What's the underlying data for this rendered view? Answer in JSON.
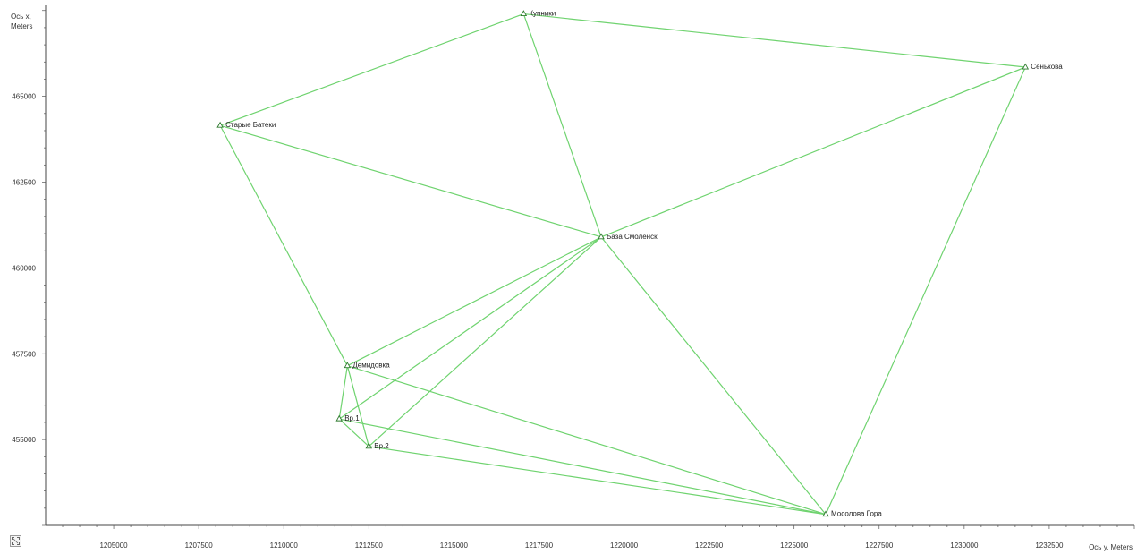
{
  "chart_data": {
    "type": "network",
    "axes": {
      "x_title": "Ось y, Meters",
      "y_title_line1": "Ось x,",
      "y_title_line2": "Meters",
      "x_range": [
        1203000,
        1235000
      ],
      "y_range": [
        452500,
        467650
      ],
      "x_ticks": [
        1205000,
        1207500,
        1210000,
        1212500,
        1215000,
        1217500,
        1220000,
        1222500,
        1225000,
        1227500,
        1230000,
        1232500
      ],
      "y_ticks": [
        455000,
        457500,
        460000,
        462500,
        465000
      ]
    },
    "points": [
      {
        "id": "kupniki",
        "label": "Купники",
        "e": 1217050,
        "n": 467400
      },
      {
        "id": "senkova",
        "label": "Сенькова",
        "e": 1231800,
        "n": 465850
      },
      {
        "id": "starye",
        "label": "Старые Батеки",
        "e": 1208130,
        "n": 464150
      },
      {
        "id": "baza",
        "label": "База Смоленск",
        "e": 1219330,
        "n": 460900
      },
      {
        "id": "demid",
        "label": "Демидовка",
        "e": 1211870,
        "n": 457150
      },
      {
        "id": "vr1",
        "label": "Вр.1",
        "e": 1211630,
        "n": 455600
      },
      {
        "id": "vr2",
        "label": "Вр.2",
        "e": 1212500,
        "n": 454800
      },
      {
        "id": "mosolova",
        "label": "Мосолова Гора",
        "e": 1225930,
        "n": 452820
      }
    ],
    "edges": [
      [
        "kupniki",
        "senkova"
      ],
      [
        "kupniki",
        "starye"
      ],
      [
        "kupniki",
        "baza"
      ],
      [
        "senkova",
        "baza"
      ],
      [
        "senkova",
        "mosolova"
      ],
      [
        "starye",
        "baza"
      ],
      [
        "starye",
        "demid"
      ],
      [
        "baza",
        "mosolova"
      ],
      [
        "baza",
        "demid"
      ],
      [
        "baza",
        "vr1"
      ],
      [
        "baza",
        "vr2"
      ],
      [
        "demid",
        "vr1"
      ],
      [
        "demid",
        "vr2"
      ],
      [
        "demid",
        "mosolova"
      ],
      [
        "vr1",
        "vr2"
      ],
      [
        "vr1",
        "mosolova"
      ],
      [
        "vr2",
        "mosolova"
      ]
    ],
    "colors": {
      "line": "#6fd36f",
      "marker": "#2f7a2f",
      "axis": "#444444"
    }
  },
  "icons": {
    "corner": "zoom-extent-icon"
  }
}
